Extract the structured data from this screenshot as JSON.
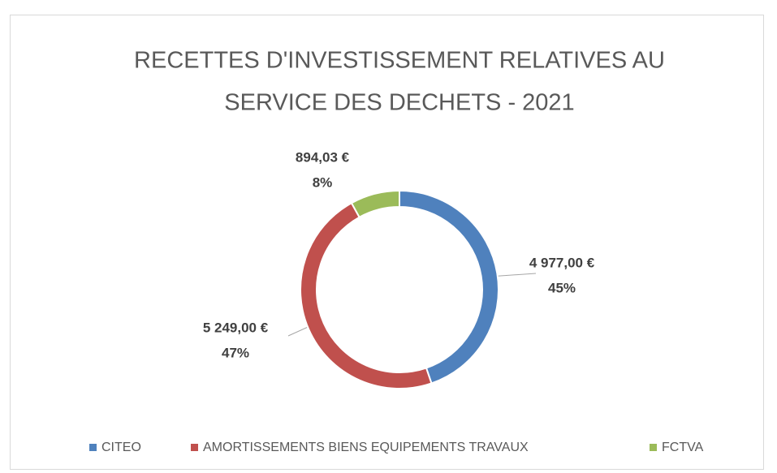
{
  "chart_data": {
    "type": "donut",
    "title": [
      "RECETTES D'INVESTISSEMENT RELATIVES AU",
      "SERVICE DES DECHETS - 2021"
    ],
    "categories": [
      "CITEO",
      "AMORTISSEMENTS BIENS EQUIPEMENTS TRAVAUX",
      "FCTVA"
    ],
    "values": [
      4977,
      5249,
      894.03
    ],
    "value_labels": [
      "4 977,00 €",
      "5 249,00 €",
      "894,03 €"
    ],
    "percent_labels": [
      "45%",
      "47%",
      "8%"
    ],
    "colors": [
      "#4f81bd",
      "#c0504d",
      "#9bbb59"
    ],
    "legend": "bottom"
  }
}
